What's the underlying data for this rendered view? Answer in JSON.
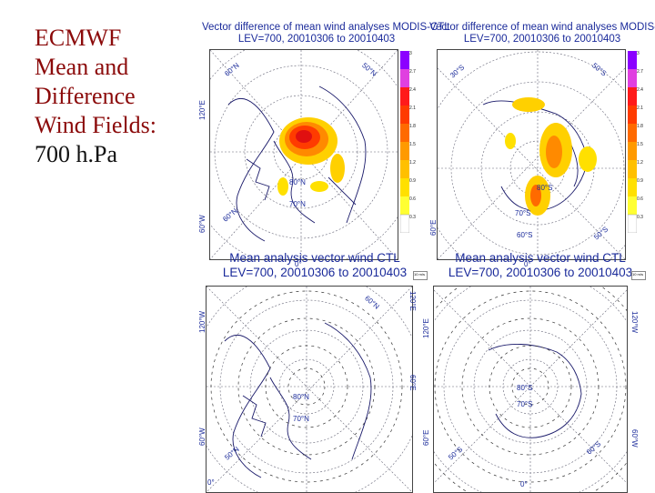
{
  "slide": {
    "title_lines": [
      "ECMWF",
      "Mean and",
      "Difference",
      "Wind Fields:"
    ],
    "title_last_line": "700 h.Pa"
  },
  "panels": [
    {
      "id": "diff-arctic",
      "title_line1": "Vector difference of mean wind analyses MODIS-CTL",
      "title_line2": "LEV=700, 20010306 to 20010403",
      "labels": [
        "60°N",
        "120°E",
        "60°W",
        "70°N",
        "80°N",
        "60°N",
        "50°N",
        "0°"
      ],
      "colorbar_ticks": [
        "3",
        "2.7",
        "2.4",
        "2.1",
        "1.8",
        "1.5",
        "1.2",
        "0.9",
        "0.6",
        "0.3"
      ]
    },
    {
      "id": "diff-antarctic",
      "title_line1": "Vector difference of mean wind analyses MODIS-C",
      "title_line2": "LEV=700, 20010306 to 20010403",
      "labels": [
        "30°S",
        "60°E",
        "70°S",
        "80°S",
        "50°S",
        "60°S",
        "50°S",
        "0°"
      ],
      "colorbar_ticks": [
        "3",
        "2.7",
        "2.4",
        "2.1",
        "1.8",
        "1.5",
        "1.2",
        "0.9",
        "0.6",
        "0.3"
      ]
    },
    {
      "id": "mean-arctic",
      "title_line1": "Mean analysis vector wind CTL",
      "title_line2": "LEV=700, 20010306 to 20010403",
      "labels": [
        "120°W",
        "60°W",
        "60°E",
        "120°E",
        "80°N",
        "70°N",
        "60°N",
        "50°N",
        "0°"
      ],
      "legend": "10 m/s"
    },
    {
      "id": "mean-antarctic",
      "title_line1": "Mean analysis vector wind CTL",
      "title_line2": "LEV=700, 20010306 to 20010403",
      "labels": [
        "120°E",
        "60°E",
        "120°W",
        "60°W",
        "80°S",
        "70°S",
        "60°S",
        "50°S",
        "0°"
      ],
      "legend": "10 m/s"
    }
  ],
  "colors": {
    "title_red": "#8b0a0a",
    "map_text": "#1a2a9a",
    "colorbar": [
      "#8b00ff",
      "#e040e0",
      "#ff1a1a",
      "#ff3b00",
      "#ff6a00",
      "#ff9a00",
      "#ffc000",
      "#ffe000",
      "#ffff33",
      "#ffffff"
    ]
  }
}
